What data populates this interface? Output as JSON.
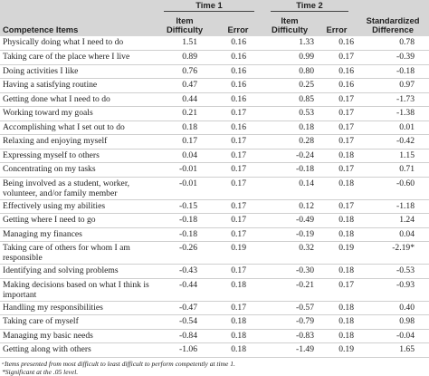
{
  "table": {
    "groups": [
      "Time 1",
      "Time 2"
    ],
    "columns": [
      "Competence Items",
      "Item Difficulty",
      "Error",
      "Item Difficulty",
      "Error",
      "Standardized Difference"
    ],
    "rows": [
      [
        "Physically doing what I need to do",
        "1.51",
        "0.16",
        "1.33",
        "0.16",
        "0.78"
      ],
      [
        "Taking care of the place where I live",
        "0.89",
        "0.16",
        "0.99",
        "0.17",
        "-0.39"
      ],
      [
        "Doing activities I like",
        "0.76",
        "0.16",
        "0.80",
        "0.16",
        "-0.18"
      ],
      [
        "Having a satisfying routine",
        "0.47",
        "0.16",
        "0.25",
        "0.16",
        "0.97"
      ],
      [
        "Getting done what I need to do",
        "0.44",
        "0.16",
        "0.85",
        "0.17",
        "-1.73"
      ],
      [
        "Working toward my goals",
        "0.21",
        "0.17",
        "0.53",
        "0.17",
        "-1.38"
      ],
      [
        "Accomplishing what I set out to do",
        "0.18",
        "0.16",
        "0.18",
        "0.17",
        "0.01"
      ],
      [
        "Relaxing and enjoying myself",
        "0.17",
        "0.17",
        "0.28",
        "0.17",
        "-0.42"
      ],
      [
        "Expressing myself to others",
        "0.04",
        "0.17",
        "-0.24",
        "0.18",
        "1.15"
      ],
      [
        "Concentrating on my tasks",
        "-0.01",
        "0.17",
        "-0.18",
        "0.17",
        "0.71"
      ],
      [
        "Being involved as a student, worker, volunteer, and/or family member",
        "-0.01",
        "0.17",
        "0.14",
        "0.18",
        "-0.60"
      ],
      [
        "Effectively using my abilities",
        "-0.15",
        "0.17",
        "0.12",
        "0.17",
        "-1.18"
      ],
      [
        "Getting where I need to go",
        "-0.18",
        "0.17",
        "-0.49",
        "0.18",
        "1.24"
      ],
      [
        "Managing my finances",
        "-0.18",
        "0.17",
        "-0.19",
        "0.18",
        "0.04"
      ],
      [
        "Taking care of others for whom I am responsible",
        "-0.26",
        "0.19",
        "0.32",
        "0.19",
        "-2.19*"
      ],
      [
        "Identifying and solving problems",
        "-0.43",
        "0.17",
        "-0.30",
        "0.18",
        "-0.53"
      ],
      [
        "Making decisions based on what I think is important",
        "-0.44",
        "0.18",
        "-0.21",
        "0.17",
        "-0.93"
      ],
      [
        "Handling my responsibilities",
        "-0.47",
        "0.17",
        "-0.57",
        "0.18",
        "0.40"
      ],
      [
        "Taking care of myself",
        "-0.54",
        "0.18",
        "-0.79",
        "0.18",
        "0.98"
      ],
      [
        "Managing my basic needs",
        "-0.84",
        "0.18",
        "-0.83",
        "0.18",
        "-0.04"
      ],
      [
        "Getting along with others",
        "-1.06",
        "0.18",
        "-1.49",
        "0.19",
        "1.65"
      ]
    ],
    "footnotes": [
      "ᵃItems presented from most difficult to least difficult to perform competently at time 1.",
      "*Significant at the .05 level."
    ]
  }
}
